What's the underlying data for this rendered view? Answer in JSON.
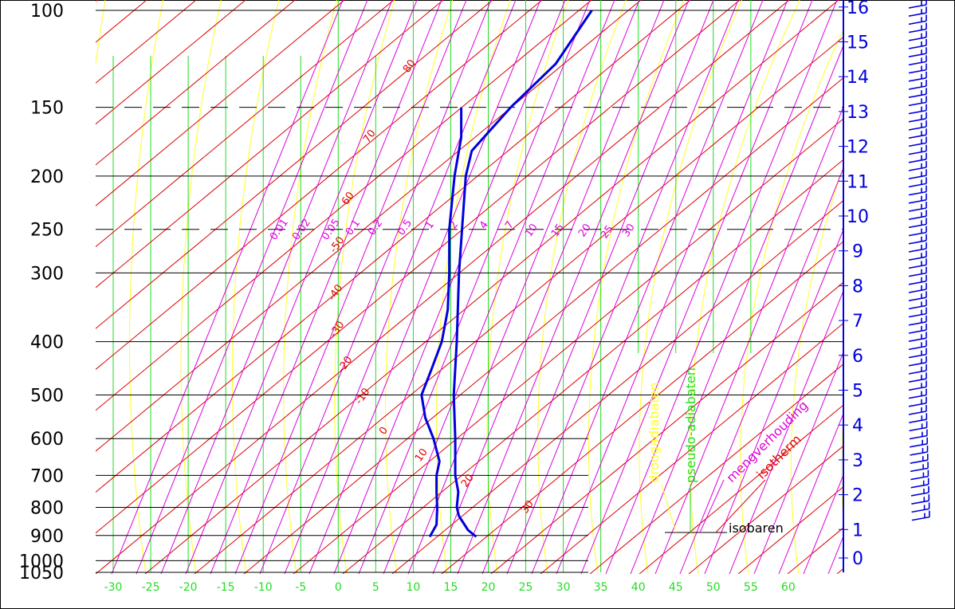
{
  "chart_data": {
    "type": "line",
    "xlim": [
      -30,
      60
    ],
    "pressure_ticks": [
      "100",
      "150",
      "200",
      "250",
      "300",
      "400",
      "500",
      "600",
      "700",
      "800",
      "900",
      "1000",
      "1050"
    ],
    "pressure_values": [
      100,
      150,
      200,
      250,
      300,
      400,
      500,
      600,
      700,
      800,
      900,
      1000,
      1050
    ],
    "dashed_isobars": [
      150,
      250
    ],
    "temperature_ticks": [
      "-30",
      "-25",
      "-20",
      "-15",
      "-10",
      "-5",
      "0",
      "5",
      "10",
      "15",
      "20",
      "25",
      "30",
      "35",
      "40",
      "45",
      "50",
      "55",
      "60"
    ],
    "temperature_values": [
      -30,
      -25,
      -20,
      -15,
      -10,
      -5,
      0,
      5,
      10,
      15,
      20,
      25,
      30,
      35,
      40,
      45,
      50,
      55,
      60
    ],
    "height_ticks": [
      "0",
      "1",
      "2",
      "3",
      "4",
      "5",
      "6",
      "7",
      "8",
      "9",
      "10",
      "11",
      "12",
      "13",
      "14",
      "15",
      "16"
    ],
    "height_values": [
      0,
      1,
      2,
      3,
      4,
      5,
      6,
      7,
      8,
      9,
      10,
      11,
      12,
      13,
      14,
      15,
      16
    ],
    "isotherm_labels": [
      "80",
      "70",
      "60",
      "-50",
      "-40",
      "-30",
      "-20",
      "-10",
      "0",
      "10",
      "20",
      "30"
    ],
    "mixing_ratio_labels": [
      "0.01",
      "0.02",
      "0.05",
      "0.1",
      "0.2",
      "0.5",
      "1",
      "2",
      "4",
      "7",
      "10",
      "15",
      "20",
      "25",
      "30"
    ],
    "legend": {
      "dry": "droogadiabaten",
      "moist": "pseudo-adiabaten",
      "mixing": "mengverhouding",
      "isotherm": "isotherm",
      "isobar": "isobaren"
    },
    "series": [
      {
        "color": "#0000dd",
        "points": [
          {
            "p": 905,
            "t": 18.4
          },
          {
            "p": 880,
            "t": 17.3
          },
          {
            "p": 830,
            "t": 16.1
          },
          {
            "p": 800,
            "t": 15.8
          },
          {
            "p": 750,
            "t": 16.0
          },
          {
            "p": 700,
            "t": 15.6
          },
          {
            "p": 600,
            "t": 15.6
          },
          {
            "p": 500,
            "t": 15.4
          },
          {
            "p": 400,
            "t": 15.8
          },
          {
            "p": 300,
            "t": 16.1
          },
          {
            "p": 250,
            "t": 16.5
          },
          {
            "p": 200,
            "t": 17.0
          },
          {
            "p": 180,
            "t": 17.8
          },
          {
            "p": 150,
            "t": 23.0
          },
          {
            "p": 125,
            "t": 29.0
          },
          {
            "p": 100,
            "t": 33.8
          }
        ]
      },
      {
        "color": "#0000dd",
        "points": [
          {
            "p": 905,
            "t": 12.2
          },
          {
            "p": 860,
            "t": 13.1
          },
          {
            "p": 800,
            "t": 13.2
          },
          {
            "p": 750,
            "t": 13.1
          },
          {
            "p": 700,
            "t": 13.1
          },
          {
            "p": 660,
            "t": 13.5
          },
          {
            "p": 600,
            "t": 12.7
          },
          {
            "p": 550,
            "t": 11.6
          },
          {
            "p": 500,
            "t": 11.1
          },
          {
            "p": 450,
            "t": 12.4
          },
          {
            "p": 400,
            "t": 13.8
          },
          {
            "p": 350,
            "t": 14.6
          },
          {
            "p": 300,
            "t": 14.8
          },
          {
            "p": 250,
            "t": 14.8
          },
          {
            "p": 200,
            "t": 15.5
          },
          {
            "p": 170,
            "t": 16.4
          },
          {
            "p": 150,
            "t": 16.4
          }
        ]
      }
    ]
  }
}
